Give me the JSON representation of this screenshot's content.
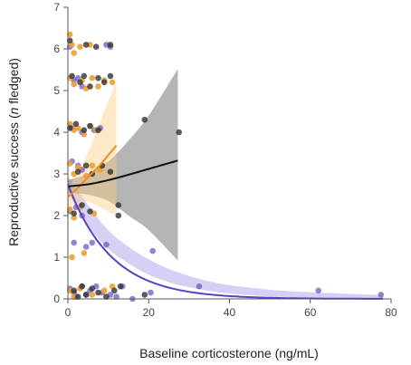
{
  "chart_data": {
    "type": "scatter",
    "title": "",
    "xlabel": "Baseline corticosterone (ng/mL)",
    "ylabel_parts": [
      "Reproductive success (",
      "n",
      " fledged)"
    ],
    "xlim": [
      0,
      80
    ],
    "ylim": [
      0,
      7
    ],
    "xticks": [
      0,
      20,
      40,
      60,
      80
    ],
    "yticks": [
      0,
      1,
      2,
      3,
      4,
      5,
      6,
      7
    ],
    "grid": false,
    "legend": "none",
    "series": [
      {
        "color": "#5b3fc4",
        "point_color": "rgba(104,84,196,0.72)",
        "band_color": "rgba(130,110,220,0.32)",
        "points": [
          [
            0.5,
            6.05
          ],
          [
            1.5,
            5.25
          ],
          [
            2.5,
            5.3
          ],
          [
            3.5,
            5.1
          ],
          [
            9.5,
            6.1
          ],
          [
            10.5,
            6.05
          ],
          [
            1.0,
            4.1
          ],
          [
            3.5,
            4.0
          ],
          [
            6.5,
            4.05
          ],
          [
            8.0,
            4.1
          ],
          [
            1.0,
            3.3
          ],
          [
            2.5,
            3.2
          ],
          [
            3.5,
            3.1
          ],
          [
            0.5,
            2.1
          ],
          [
            2.0,
            2.2
          ],
          [
            3.5,
            2.0
          ],
          [
            1.5,
            1.35
          ],
          [
            4.5,
            1.25
          ],
          [
            6.0,
            1.35
          ],
          [
            9.5,
            1.3
          ],
          [
            21.0,
            1.15
          ],
          [
            0.5,
            0.25
          ],
          [
            1.5,
            0.15
          ],
          [
            2.0,
            0.05
          ],
          [
            3.5,
            0.3
          ],
          [
            4.5,
            0.1
          ],
          [
            5.5,
            0.2
          ],
          [
            7.0,
            0.3
          ],
          [
            8.5,
            0.15
          ],
          [
            10.5,
            0.1
          ],
          [
            12.0,
            0.05
          ],
          [
            13.5,
            0.3
          ],
          [
            16.0,
            0.0
          ],
          [
            20.5,
            0.15
          ],
          [
            32.5,
            0.3
          ],
          [
            62.0,
            0.2
          ],
          [
            77.5,
            0.1
          ]
        ],
        "curve": [
          [
            0,
            2.75
          ],
          [
            27.2,
            0.22
          ],
          [
            40,
            0.08
          ],
          [
            60,
            0.02
          ],
          [
            78,
            0.0
          ]
        ],
        "band_upper": [
          [
            0,
            2.95
          ],
          [
            5,
            2.25
          ],
          [
            10,
            1.65
          ],
          [
            15,
            1.25
          ],
          [
            20,
            0.95
          ],
          [
            25,
            0.72
          ],
          [
            30,
            0.55
          ],
          [
            35,
            0.42
          ],
          [
            40,
            0.33
          ],
          [
            50,
            0.22
          ],
          [
            60,
            0.16
          ],
          [
            70,
            0.12
          ],
          [
            78,
            0.09
          ]
        ],
        "band_lower": [
          [
            0,
            2.55
          ],
          [
            5,
            1.75
          ],
          [
            10,
            1.2
          ],
          [
            15,
            0.85
          ],
          [
            20,
            0.58
          ],
          [
            25,
            0.4
          ],
          [
            30,
            0.28
          ],
          [
            35,
            0.19
          ],
          [
            40,
            0.13
          ],
          [
            50,
            0.06
          ],
          [
            60,
            0.03
          ],
          [
            70,
            0.01
          ],
          [
            78,
            0.0
          ]
        ]
      },
      {
        "color": "#ee8e22",
        "point_color": "rgba(236,160,50,0.9)",
        "band_color": "rgba(250,205,130,0.45)",
        "points": [
          [
            0.5,
            6.35
          ],
          [
            1.0,
            6.1
          ],
          [
            1.5,
            5.9
          ],
          [
            3.0,
            6.05
          ],
          [
            5.5,
            6.1
          ],
          [
            0.5,
            5.3
          ],
          [
            1.5,
            5.15
          ],
          [
            3.5,
            5.25
          ],
          [
            4.5,
            5.05
          ],
          [
            6.0,
            5.3
          ],
          [
            7.5,
            5.1
          ],
          [
            9.0,
            5.25
          ],
          [
            11.0,
            5.2
          ],
          [
            0.5,
            4.2
          ],
          [
            1.5,
            4.05
          ],
          [
            2.5,
            4.1
          ],
          [
            4.0,
            3.95
          ],
          [
            5.5,
            4.15
          ],
          [
            7.0,
            4.05
          ],
          [
            0.5,
            3.25
          ],
          [
            1.5,
            3.0
          ],
          [
            2.5,
            3.15
          ],
          [
            4.5,
            2.95
          ],
          [
            6.0,
            3.2
          ],
          [
            8.0,
            3.1
          ],
          [
            0.5,
            2.15
          ],
          [
            1.5,
            1.95
          ],
          [
            3.0,
            2.2
          ],
          [
            6.5,
            2.05
          ],
          [
            1.0,
            1.0
          ],
          [
            4.0,
            1.1
          ],
          [
            0.5,
            0.2
          ],
          [
            1.5,
            0.05
          ],
          [
            3.0,
            0.25
          ],
          [
            6.0,
            0.1
          ],
          [
            9.0,
            0.2
          ],
          [
            11.0,
            0.3
          ]
        ],
        "curve": [
          [
            0,
            2.45
          ],
          [
            2,
            2.62
          ],
          [
            4,
            2.82
          ],
          [
            6,
            3.02
          ],
          [
            8,
            3.22
          ],
          [
            10,
            3.45
          ],
          [
            12,
            3.68
          ]
        ],
        "band_upper": [
          [
            0,
            2.68
          ],
          [
            2,
            2.95
          ],
          [
            4,
            3.3
          ],
          [
            6,
            3.75
          ],
          [
            8,
            4.25
          ],
          [
            10,
            4.75
          ],
          [
            12,
            5.2
          ]
        ],
        "band_lower": [
          [
            0,
            2.2
          ],
          [
            2,
            2.3
          ],
          [
            4,
            2.35
          ],
          [
            6,
            2.3
          ],
          [
            8,
            2.2
          ],
          [
            10,
            2.1
          ],
          [
            12,
            2.0
          ]
        ]
      },
      {
        "color": "#111111",
        "point_color": "rgba(50,50,50,0.8)",
        "band_color": "rgba(120,120,120,0.55)",
        "points": [
          [
            0.5,
            6.2
          ],
          [
            4.5,
            6.1
          ],
          [
            7.0,
            6.05
          ],
          [
            10.5,
            6.1
          ],
          [
            1.0,
            5.35
          ],
          [
            3.0,
            5.2
          ],
          [
            4.0,
            5.35
          ],
          [
            5.5,
            5.1
          ],
          [
            7.5,
            5.3
          ],
          [
            9.0,
            5.2
          ],
          [
            10.5,
            5.35
          ],
          [
            0.5,
            4.1
          ],
          [
            2.0,
            4.2
          ],
          [
            4.0,
            4.05
          ],
          [
            5.5,
            4.15
          ],
          [
            7.5,
            4.05
          ],
          [
            19.0,
            4.3
          ],
          [
            27.5,
            4.0
          ],
          [
            2.5,
            3.05
          ],
          [
            4.5,
            3.2
          ],
          [
            6.0,
            3.0
          ],
          [
            8.5,
            3.2
          ],
          [
            10.5,
            3.05
          ],
          [
            1.5,
            2.05
          ],
          [
            3.5,
            2.25
          ],
          [
            5.5,
            2.1
          ],
          [
            12.5,
            2.0
          ],
          [
            12.5,
            2.25
          ],
          [
            1.5,
            0.2
          ],
          [
            2.5,
            0.05
          ],
          [
            3.5,
            0.3
          ],
          [
            4.5,
            0.1
          ],
          [
            6.0,
            0.25
          ],
          [
            7.5,
            0.15
          ],
          [
            9.5,
            0.05
          ],
          [
            11.5,
            0.2
          ],
          [
            13.0,
            0.3
          ],
          [
            19.0,
            0.1
          ]
        ],
        "curve": [
          [
            0,
            2.7
          ],
          [
            5,
            2.75
          ],
          [
            10,
            2.85
          ],
          [
            15,
            2.98
          ],
          [
            20,
            3.12
          ],
          [
            27.2,
            3.32
          ]
        ],
        "band_upper": [
          [
            0,
            2.85
          ],
          [
            5,
            3.0
          ],
          [
            10,
            3.3
          ],
          [
            15,
            3.8
          ],
          [
            20,
            4.4
          ],
          [
            27.2,
            5.52
          ]
        ],
        "band_lower": [
          [
            0,
            2.55
          ],
          [
            5,
            2.5
          ],
          [
            10,
            2.35
          ],
          [
            15,
            2.0
          ],
          [
            20,
            1.65
          ],
          [
            27.2,
            0.92
          ]
        ]
      }
    ]
  }
}
